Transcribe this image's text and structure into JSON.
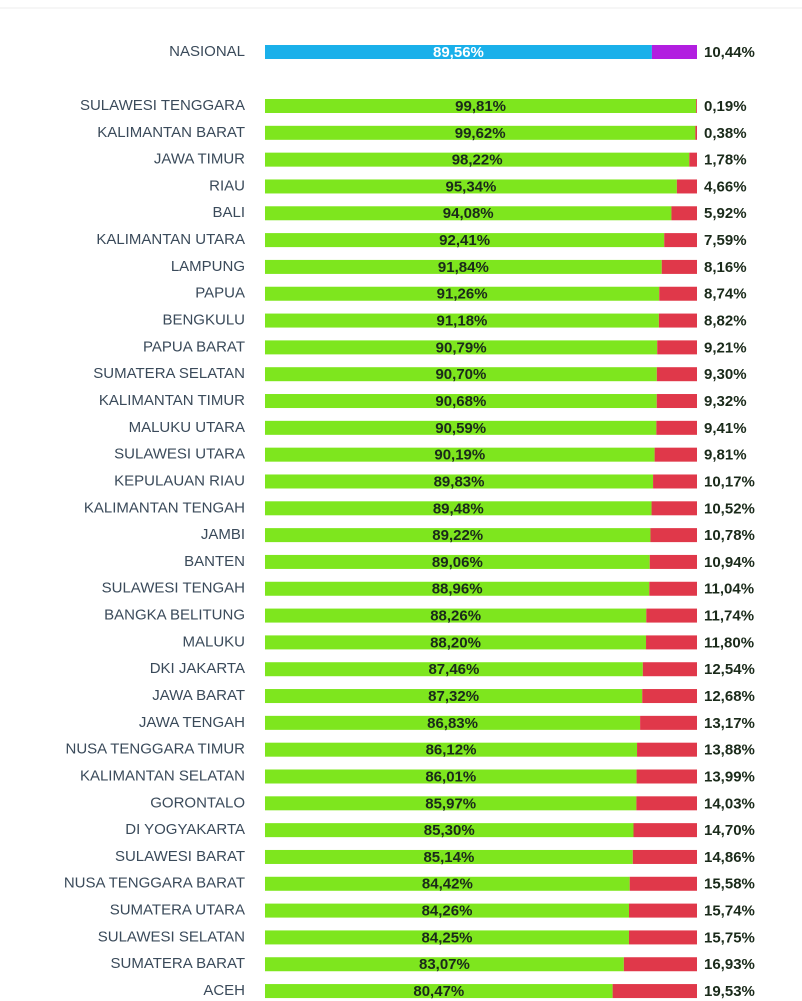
{
  "chart_data": [
    {
      "type": "stacked_barh",
      "categories": [
        "NASIONAL"
      ],
      "xlim": [
        0,
        100
      ],
      "series": [
        {
          "color": "#1ab0ea",
          "values": [
            89.56
          ],
          "value_labels": [
            "89,56%"
          ],
          "label_color": "#ffffff"
        },
        {
          "color": "#b21ee0",
          "values": [
            10.44
          ],
          "value_labels": [
            "10,44%"
          ]
        }
      ]
    },
    {
      "type": "stacked_barh",
      "xlim": [
        0,
        100
      ],
      "categories": [
        "SULAWESI TENGGARA",
        "KALIMANTAN BARAT",
        "JAWA TIMUR",
        "RIAU",
        "BALI",
        "KALIMANTAN UTARA",
        "LAMPUNG",
        "PAPUA",
        "BENGKULU",
        "PAPUA BARAT",
        "SUMATERA SELATAN",
        "KALIMANTAN TIMUR",
        "MALUKU UTARA",
        "SULAWESI UTARA",
        "KEPULAUAN RIAU",
        "KALIMANTAN TENGAH",
        "JAMBI",
        "BANTEN",
        "SULAWESI TENGAH",
        "BANGKA BELITUNG",
        "MALUKU",
        "DKI JAKARTA",
        "JAWA BARAT",
        "JAWA TENGAH",
        "NUSA TENGGARA TIMUR",
        "KALIMANTAN SELATAN",
        "GORONTALO",
        "DI YOGYAKARTA",
        "SULAWESI BARAT",
        "NUSA TENGGARA BARAT",
        "SUMATERA UTARA",
        "SULAWESI SELATAN",
        "SUMATERA BARAT",
        "ACEH"
      ],
      "series": [
        {
          "color": "#7ee61e",
          "label_color": "#1a2a1a",
          "values": [
            99.81,
            99.62,
            98.22,
            95.34,
            94.08,
            92.41,
            91.84,
            91.26,
            91.18,
            90.79,
            90.7,
            90.68,
            90.59,
            90.19,
            89.83,
            89.48,
            89.22,
            89.06,
            88.96,
            88.26,
            88.2,
            87.46,
            87.32,
            86.83,
            86.12,
            86.01,
            85.97,
            85.3,
            85.14,
            84.42,
            84.26,
            84.25,
            83.07,
            80.47
          ],
          "value_labels": [
            "99,81%",
            "99,62%",
            "98,22%",
            "95,34%",
            "94,08%",
            "92,41%",
            "91,84%",
            "91,26%",
            "91,18%",
            "90,79%",
            "90,70%",
            "90,68%",
            "90,59%",
            "90,19%",
            "89,83%",
            "89,48%",
            "89,22%",
            "89,06%",
            "88,96%",
            "88,26%",
            "88,20%",
            "87,46%",
            "87,32%",
            "86,83%",
            "86,12%",
            "86,01%",
            "85,97%",
            "85,30%",
            "85,14%",
            "84,42%",
            "84,26%",
            "84,25%",
            "83,07%",
            "80,47%"
          ]
        },
        {
          "color": "#e0384a",
          "values": [
            0.19,
            0.38,
            1.78,
            4.66,
            5.92,
            7.59,
            8.16,
            8.74,
            8.82,
            9.21,
            9.3,
            9.32,
            9.41,
            9.81,
            10.17,
            10.52,
            10.78,
            10.94,
            11.04,
            11.74,
            11.8,
            12.54,
            12.68,
            13.17,
            13.88,
            13.99,
            14.03,
            14.7,
            14.86,
            15.58,
            15.74,
            15.75,
            16.93,
            19.53
          ],
          "value_labels": [
            "0,19%",
            "0,38%",
            "1,78%",
            "4,66%",
            "5,92%",
            "7,59%",
            "8,16%",
            "8,74%",
            "8,82%",
            "9,21%",
            "9,30%",
            "9,32%",
            "9,41%",
            "9,81%",
            "10,17%",
            "10,52%",
            "10,78%",
            "10,94%",
            "11,04%",
            "11,74%",
            "11,80%",
            "12,54%",
            "12,68%",
            "13,17%",
            "13,88%",
            "13,99%",
            "14,03%",
            "14,70%",
            "14,86%",
            "15,58%",
            "15,74%",
            "15,75%",
            "16,93%",
            "19,53%"
          ]
        }
      ]
    }
  ]
}
